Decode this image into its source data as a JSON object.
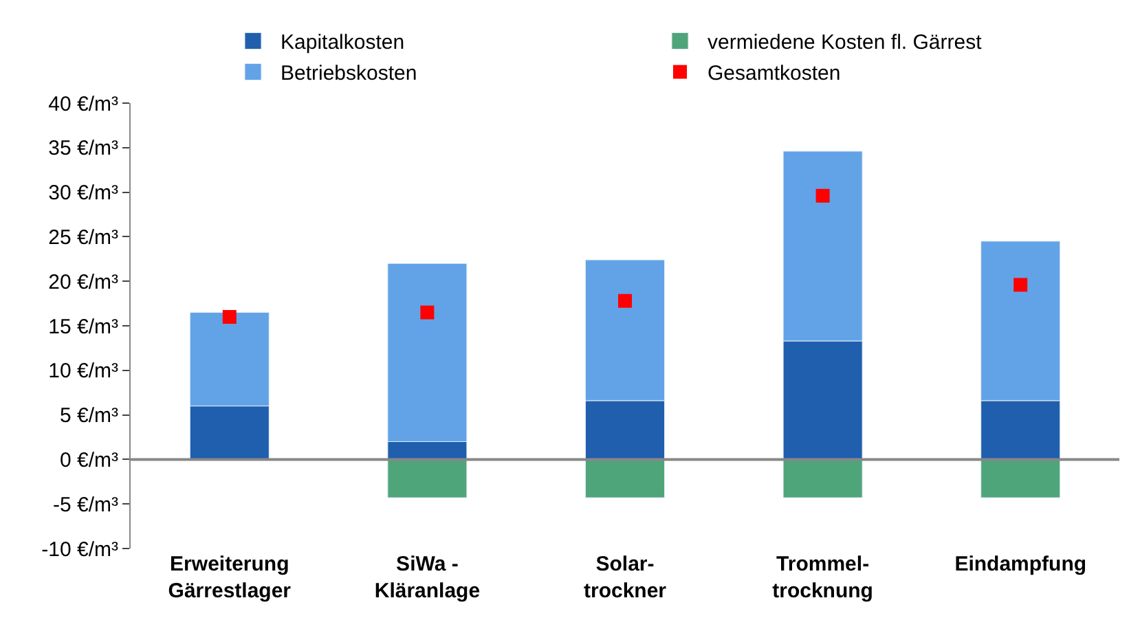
{
  "chart_data": {
    "type": "bar",
    "stacked": true,
    "categories": [
      "Erweiterung\nGärrestlager",
      "SiWa -\nKläranlage",
      "Solar-\ntrockner",
      "Trommel-\ntrocknung",
      "Eindampfung"
    ],
    "series": [
      {
        "name": "Kapitalkosten",
        "color": "#1f5fae",
        "values": [
          6,
          2,
          6.6,
          13.3,
          6.6
        ]
      },
      {
        "name": "Betriebskosten",
        "color": "#62a3e8",
        "values": [
          10.5,
          20,
          15.8,
          21.3,
          17.9
        ]
      },
      {
        "name": "vermiedene Kosten fl. Gärrest",
        "color": "#4fa57a",
        "values": [
          null,
          -4.3,
          -4.3,
          -4.3,
          -4.3
        ]
      },
      {
        "name": "Gesamtkosten",
        "type": "scatter",
        "marker": "square",
        "color": "#ff0000",
        "values": [
          16,
          16.5,
          17.8,
          29.6,
          19.6
        ]
      }
    ],
    "ylim": [
      -10,
      40
    ],
    "yticks": [
      {
        "value": -10,
        "label": "-10 €/m³"
      },
      {
        "value": -5,
        "label": "-5 €/m³"
      },
      {
        "value": 0,
        "label": "0 €/m³"
      },
      {
        "value": 5,
        "label": "5 €/m³"
      },
      {
        "value": 10,
        "label": "10 €/m³"
      },
      {
        "value": 15,
        "label": "15 €/m³"
      },
      {
        "value": 20,
        "label": "20 €/m³"
      },
      {
        "value": 25,
        "label": "25 €/m³"
      },
      {
        "value": 30,
        "label": "30 €/m³"
      },
      {
        "value": 35,
        "label": "35 €/m³"
      },
      {
        "value": 40,
        "label": "40 €/m³"
      }
    ],
    "ref_lines": [
      {
        "axis": "y",
        "value": 0,
        "color": "#888888"
      }
    ],
    "legend": "top"
  }
}
